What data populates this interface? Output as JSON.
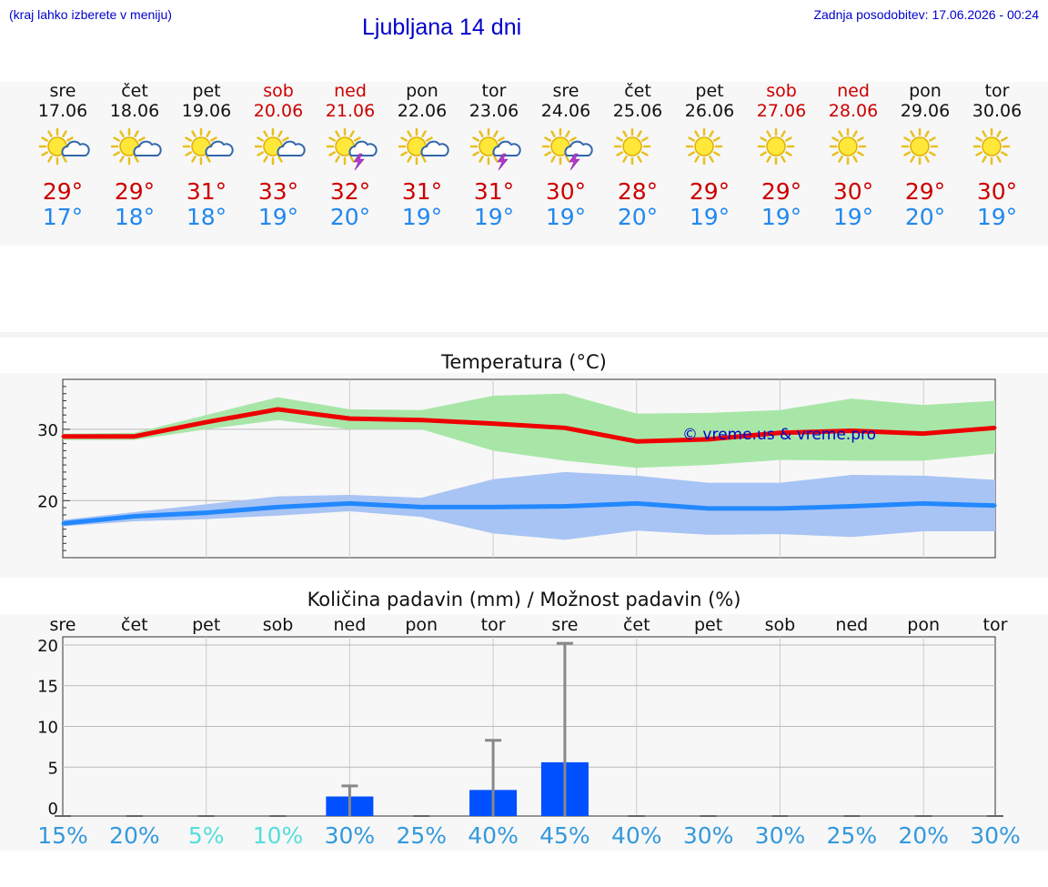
{
  "header": {
    "hint": "(kraj lahko izberete v meniju)",
    "title": "Ljubljana 14 dni",
    "updated": "Zadnja posodobitev: 17.06.2026 - 00:24"
  },
  "days": [
    {
      "name": "sre",
      "date": "17.06",
      "weekend": false,
      "icon": "sun-cloud-icon",
      "max": "29°",
      "min": "17°"
    },
    {
      "name": "čet",
      "date": "18.06",
      "weekend": false,
      "icon": "sun-cloud-icon",
      "max": "29°",
      "min": "18°"
    },
    {
      "name": "pet",
      "date": "19.06",
      "weekend": false,
      "icon": "sun-cloud-icon",
      "max": "31°",
      "min": "18°"
    },
    {
      "name": "sob",
      "date": "20.06",
      "weekend": true,
      "icon": "sun-cloud-icon",
      "max": "33°",
      "min": "19°"
    },
    {
      "name": "ned",
      "date": "21.06",
      "weekend": true,
      "icon": "sun-storm-icon",
      "max": "32°",
      "min": "20°"
    },
    {
      "name": "pon",
      "date": "22.06",
      "weekend": false,
      "icon": "sun-cloud-icon",
      "max": "31°",
      "min": "19°"
    },
    {
      "name": "tor",
      "date": "23.06",
      "weekend": false,
      "icon": "sun-storm-icon",
      "max": "31°",
      "min": "19°"
    },
    {
      "name": "sre",
      "date": "24.06",
      "weekend": false,
      "icon": "sun-storm-icon",
      "max": "30°",
      "min": "19°"
    },
    {
      "name": "čet",
      "date": "25.06",
      "weekend": false,
      "icon": "sun-icon",
      "max": "28°",
      "min": "20°"
    },
    {
      "name": "pet",
      "date": "26.06",
      "weekend": false,
      "icon": "sun-icon",
      "max": "29°",
      "min": "19°"
    },
    {
      "name": "sob",
      "date": "27.06",
      "weekend": true,
      "icon": "sun-icon",
      "max": "29°",
      "min": "19°"
    },
    {
      "name": "ned",
      "date": "28.06",
      "weekend": true,
      "icon": "sun-icon",
      "max": "30°",
      "min": "19°"
    },
    {
      "name": "pon",
      "date": "29.06",
      "weekend": false,
      "icon": "sun-icon",
      "max": "29°",
      "min": "20°"
    },
    {
      "name": "tor",
      "date": "30.06",
      "weekend": false,
      "icon": "sun-icon",
      "max": "30°",
      "min": "19°"
    }
  ],
  "colors": {
    "max": "#ee0000",
    "min": "#2288ff",
    "max_band": "#a8e6a8",
    "min_band": "#a8c4f4",
    "precip_bar": "#0050ff",
    "error_bar": "#888888",
    "watermark": "#0000cc"
  },
  "chart_data": [
    {
      "type": "line",
      "title": "Temperatura (°C)",
      "watermark": "© vreme.us & vreme.pro",
      "ylim": [
        12,
        37
      ],
      "yticks": [
        20,
        30
      ],
      "grid": true,
      "series": [
        {
          "values": [
            29,
            29,
            31,
            32.8,
            31.5,
            31.3,
            30.8,
            30.2,
            28.3,
            28.6,
            29.5,
            29.8,
            29.4,
            30.2
          ]
        },
        {
          "values": [
            16.8,
            17.8,
            18.3,
            19.1,
            19.6,
            19.1,
            19.1,
            19.2,
            19.6,
            18.9,
            18.9,
            19.2,
            19.6,
            19.3
          ]
        }
      ],
      "bands": [
        {
          "low": [
            28.5,
            28.5,
            30,
            31.3,
            30,
            30,
            27,
            25.6,
            24.6,
            25,
            25.7,
            25.6,
            25.6,
            26.6
          ],
          "high": [
            29.4,
            29.5,
            32,
            34.5,
            32.8,
            32.7,
            34.7,
            35,
            32.2,
            32.3,
            32.7,
            34.3,
            33.4,
            34
          ]
        },
        {
          "low": [
            16.4,
            17.1,
            17.4,
            17.9,
            18.5,
            17.7,
            15.4,
            14.5,
            15.8,
            15.2,
            15.3,
            14.9,
            15.7,
            15.7
          ],
          "high": [
            17.3,
            18.4,
            19.5,
            20.6,
            20.8,
            20.4,
            23,
            24,
            23.5,
            22.5,
            22.5,
            23.6,
            23.5,
            22.9
          ]
        }
      ]
    },
    {
      "type": "bar",
      "title": "Količina padavin (mm) / Možnost padavin (%)",
      "categories": [
        "sre",
        "čet",
        "pet",
        "sob",
        "ned",
        "pon",
        "tor",
        "sre",
        "čet",
        "pet",
        "sob",
        "ned",
        "pon",
        "tor"
      ],
      "ylim": [
        -1,
        21
      ],
      "yticks": [
        0,
        5,
        10,
        15,
        20
      ],
      "values": [
        0,
        0,
        0,
        0,
        1.4,
        0,
        2.2,
        5.6,
        0,
        0,
        0,
        0,
        0,
        0
      ],
      "error_high": [
        0,
        0,
        0,
        0,
        2.7,
        0,
        8.3,
        20.2,
        0,
        0,
        0,
        0,
        0,
        0
      ],
      "chance": [
        "15%",
        "20%",
        "5%",
        "10%",
        "30%",
        "25%",
        "40%",
        "45%",
        "40%",
        "30%",
        "30%",
        "25%",
        "20%",
        "30%"
      ],
      "chance_colors": [
        "#3399dd",
        "#3399dd",
        "#55dddd",
        "#55dddd",
        "#3399dd",
        "#3399dd",
        "#3399dd",
        "#3399dd",
        "#3399dd",
        "#3399dd",
        "#3399dd",
        "#3399dd",
        "#3399dd",
        "#3399dd"
      ]
    }
  ]
}
